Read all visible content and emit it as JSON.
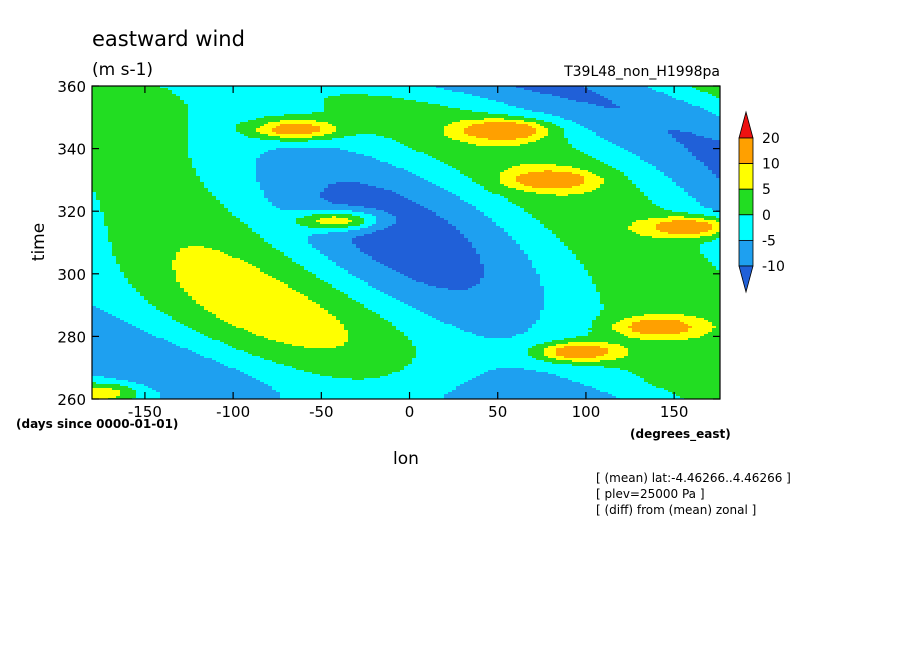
{
  "chart_data": {
    "type": "heatmap",
    "title": "eastward wind",
    "units": "(m s-1)",
    "run_label": "T39L48_non_H1998pa",
    "xlabel": "lon",
    "x_units": "(degrees_east)",
    "ylabel": "time",
    "y_units": "(days since 0000-01-01)",
    "xlim": [
      -180,
      176
    ],
    "ylim": [
      260,
      360
    ],
    "x_ticks": [
      -150,
      -100,
      -50,
      0,
      50,
      100,
      150
    ],
    "y_ticks": [
      260,
      280,
      300,
      320,
      340,
      360
    ],
    "colorbar": {
      "levels": [
        -10,
        -5,
        0,
        5,
        10,
        20
      ],
      "colors": [
        "#2060d8",
        "#1ea0f0",
        "#00ffff",
        "#22dd22",
        "#ffff00",
        "#ffa000",
        "#ee1111"
      ],
      "extend": "both"
    },
    "annotations": [
      "[ (mean) lat:-4.46266..4.46266 ]",
      "[ plev=25000 Pa ]",
      "[ (diff) from (mean) zonal ]"
    ],
    "features": [
      {
        "lon": 95,
        "time": 275,
        "value": 20
      },
      {
        "lon": 55,
        "time": 346,
        "value": 20
      },
      {
        "lon": 160,
        "time": 315,
        "value": 20
      },
      {
        "lon": -40,
        "time": 317,
        "value": 20
      },
      {
        "lon": -65,
        "time": 346,
        "value": 20
      },
      {
        "lon": -175,
        "time": 262,
        "value": 15
      },
      {
        "lon": 140,
        "time": 283,
        "value": 15
      },
      {
        "lon": 80,
        "time": 330,
        "value": 15
      }
    ]
  }
}
